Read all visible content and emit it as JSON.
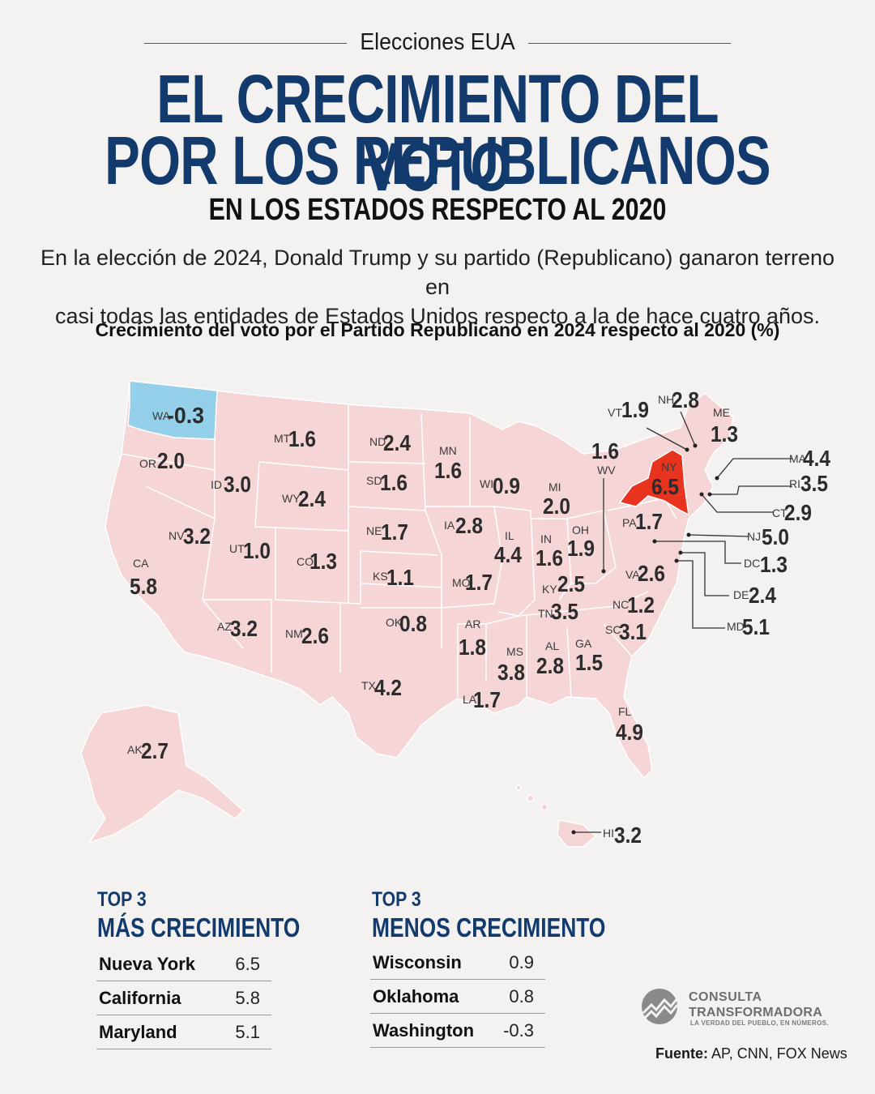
{
  "header": {
    "kicker": "Elecciones EUA",
    "title_line1": "EL CRECIMIENTO DEL VOTO",
    "title_line2": "POR LOS REPUBLICANOS",
    "subtitle": "EN LOS ESTADOS RESPECTO AL 2020",
    "intro_line1": "En la elección de 2024, Donald Trump y su partido (Republicano) ganaron terreno en",
    "intro_line2": "casi todas  las entidades de Estados Unidos respecto a la de hace cuatro años."
  },
  "colors": {
    "title": "#123a6c",
    "states_fill": "#f5d5d6",
    "negative_fill": "#94d0ea",
    "highlight_fill": "#e8331f",
    "rule": "#b8322c"
  },
  "chart_data": {
    "type": "choropleth-map",
    "title": "Crecimiento del voto por el Partido Republicano en 2024 respecto al 2020 (%)",
    "unit": "%",
    "states": [
      {
        "code": "WA",
        "value": "-0.3"
      },
      {
        "code": "OR",
        "value": "2.0"
      },
      {
        "code": "CA",
        "value": "5.8"
      },
      {
        "code": "NV",
        "value": "3.2"
      },
      {
        "code": "ID",
        "value": "3.0"
      },
      {
        "code": "MT",
        "value": "1.6"
      },
      {
        "code": "WY",
        "value": "2.4"
      },
      {
        "code": "UT",
        "value": "1.0"
      },
      {
        "code": "AZ",
        "value": "3.2"
      },
      {
        "code": "CO",
        "value": "1.3"
      },
      {
        "code": "NM",
        "value": "2.6"
      },
      {
        "code": "ND",
        "value": "2.4"
      },
      {
        "code": "SD",
        "value": "1.6"
      },
      {
        "code": "NE",
        "value": "1.7"
      },
      {
        "code": "KS",
        "value": "1.1"
      },
      {
        "code": "OK",
        "value": "0.8"
      },
      {
        "code": "TX",
        "value": "4.2"
      },
      {
        "code": "MN",
        "value": "1.6"
      },
      {
        "code": "IA",
        "value": "2.8"
      },
      {
        "code": "MO",
        "value": "1.7"
      },
      {
        "code": "AR",
        "value": "1.8"
      },
      {
        "code": "LA",
        "value": "1.7"
      },
      {
        "code": "WI",
        "value": "0.9"
      },
      {
        "code": "IL",
        "value": "4.4"
      },
      {
        "code": "MI",
        "value": "2.0"
      },
      {
        "code": "IN",
        "value": "1.6"
      },
      {
        "code": "OH",
        "value": "1.9"
      },
      {
        "code": "KY",
        "value": "2.5"
      },
      {
        "code": "TN",
        "value": "3.5"
      },
      {
        "code": "MS",
        "value": "3.8"
      },
      {
        "code": "AL",
        "value": "2.8"
      },
      {
        "code": "GA",
        "value": "1.5"
      },
      {
        "code": "FL",
        "value": "4.9"
      },
      {
        "code": "SC",
        "value": "3.1"
      },
      {
        "code": "NC",
        "value": "1.2"
      },
      {
        "code": "VA",
        "value": "2.6"
      },
      {
        "code": "WV",
        "value": "1.6"
      },
      {
        "code": "PA",
        "value": "1.7"
      },
      {
        "code": "NY",
        "value": "6.5"
      },
      {
        "code": "VT",
        "value": "1.9"
      },
      {
        "code": "NH",
        "value": "2.8"
      },
      {
        "code": "ME",
        "value": "1.3"
      },
      {
        "code": "MA",
        "value": "4.4"
      },
      {
        "code": "RI",
        "value": "3.5"
      },
      {
        "code": "CT",
        "value": "2.9"
      },
      {
        "code": "NJ",
        "value": "5.0"
      },
      {
        "code": "DC",
        "value": "1.3"
      },
      {
        "code": "DE",
        "value": "2.4"
      },
      {
        "code": "MD",
        "value": "5.1"
      },
      {
        "code": "AK",
        "value": "2.7"
      },
      {
        "code": "HI",
        "value": "3.2"
      }
    ]
  },
  "top_more": {
    "kicker": "TOP 3",
    "heading": "MÁS CRECIMIENTO",
    "rows": [
      {
        "name": "Nueva York",
        "value": "6.5"
      },
      {
        "name": "California",
        "value": "5.8"
      },
      {
        "name": "Maryland",
        "value": "5.1"
      }
    ]
  },
  "top_less": {
    "kicker": "TOP 3",
    "heading": "MENOS CRECIMIENTO",
    "rows": [
      {
        "name": "Wisconsin",
        "value": "0.9"
      },
      {
        "name": "Oklahoma",
        "value": "0.8"
      },
      {
        "name": "Washington",
        "value": "-0.3"
      }
    ]
  },
  "brand": {
    "name_line1": "CONSULTA",
    "name_line2": "TRANSFORMADORA",
    "tagline": "LA VERDAD DEL PUEBLO, EN NÚMEROS."
  },
  "source": {
    "label": "Fuente:",
    "text": "AP, CNN, FOX News"
  }
}
